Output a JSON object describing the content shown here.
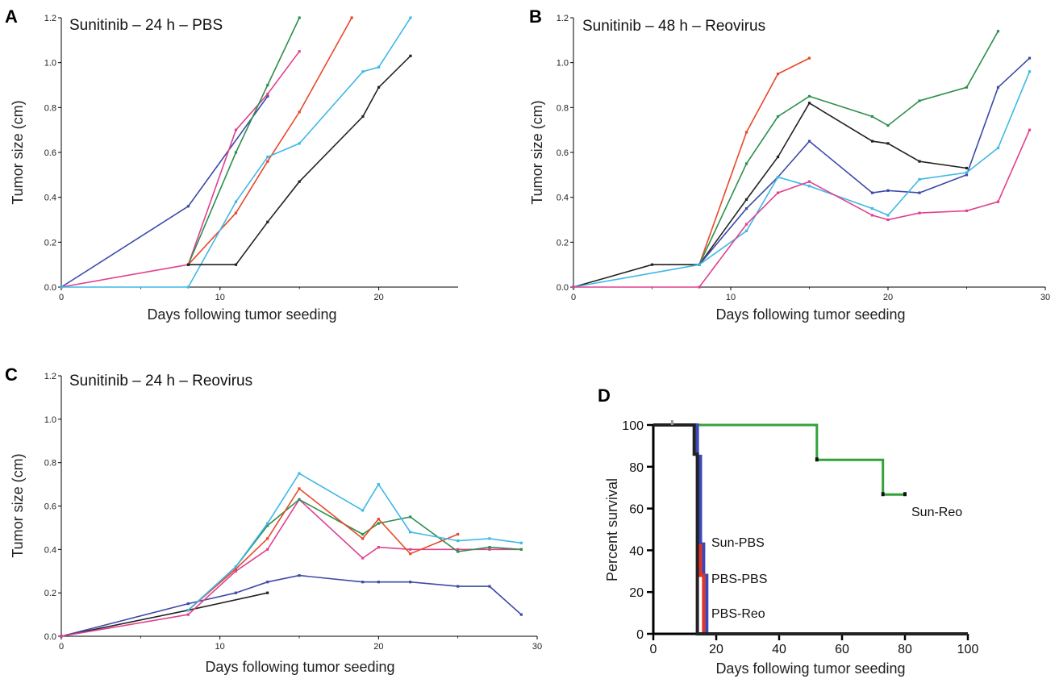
{
  "colors": {
    "navy": "#3d4aa6",
    "magenta": "#e0418f",
    "green": "#2f8f4f",
    "red": "#e8482a",
    "cyan": "#3fb8e6",
    "black": "#222222",
    "surv_green": "#33a23a",
    "surv_blue": "#3a48b8",
    "surv_red": "#e3342a"
  },
  "chart_data": [
    {
      "panel": "A",
      "type": "line",
      "title": "Sunitinib – 24 h – PBS",
      "xlabel": "Days following tumor seeding",
      "ylabel": "Tumor size (cm)",
      "xlim": [
        0,
        25
      ],
      "ylim": [
        0,
        1.2
      ],
      "xticks": [
        0,
        10,
        20
      ],
      "yticks": [
        0,
        0.2,
        0.4,
        0.6,
        0.8,
        1.0,
        1.2
      ],
      "ytick_labels": [
        "0.0",
        "0.2",
        "0.4",
        "0.6",
        "0.8",
        "1.0",
        "1.2"
      ],
      "series": [
        {
          "color": "navy",
          "points": [
            [
              0,
              0
            ],
            [
              8,
              0.36
            ],
            [
              13,
              0.85
            ]
          ]
        },
        {
          "color": "magenta",
          "points": [
            [
              0,
              0
            ],
            [
              8,
              0.1
            ],
            [
              11,
              0.7
            ],
            [
              13,
              0.86
            ],
            [
              15,
              1.05
            ]
          ]
        },
        {
          "color": "green",
          "points": [
            [
              8,
              0.1
            ],
            [
              11,
              0.6
            ],
            [
              13,
              0.9
            ],
            [
              15,
              1.2
            ]
          ]
        },
        {
          "color": "red",
          "points": [
            [
              8,
              0.1
            ],
            [
              11,
              0.33
            ],
            [
              13,
              0.56
            ],
            [
              15,
              0.78
            ],
            [
              18.3,
              1.2
            ]
          ]
        },
        {
          "color": "cyan",
          "points": [
            [
              0,
              0
            ],
            [
              8,
              0
            ],
            [
              11,
              0.38
            ],
            [
              13,
              0.58
            ],
            [
              15,
              0.64
            ],
            [
              19,
              0.96
            ],
            [
              20,
              0.98
            ],
            [
              22,
              1.2
            ]
          ]
        },
        {
          "color": "black",
          "points": [
            [
              8,
              0.1
            ],
            [
              11,
              0.1
            ],
            [
              13,
              0.29
            ],
            [
              15,
              0.47
            ],
            [
              19,
              0.76
            ],
            [
              20,
              0.89
            ],
            [
              22,
              1.03
            ]
          ]
        }
      ]
    },
    {
      "panel": "B",
      "type": "line",
      "title": "Sunitinib – 48 h – Reovirus",
      "xlabel": "Days following tumor seeding",
      "ylabel": "Tumor size (cm)",
      "xlim": [
        0,
        30
      ],
      "ylim": [
        0,
        1.2
      ],
      "xticks": [
        0,
        10,
        20,
        30
      ],
      "yticks": [
        0,
        0.2,
        0.4,
        0.6,
        0.8,
        1.0,
        1.2
      ],
      "ytick_labels": [
        "0.0",
        "0.2",
        "0.4",
        "0.6",
        "0.8",
        "1.0",
        "1.2"
      ],
      "series": [
        {
          "color": "black",
          "points": [
            [
              0,
              0
            ],
            [
              5,
              0.1
            ],
            [
              8,
              0.1
            ],
            [
              11,
              0.39
            ],
            [
              13,
              0.58
            ],
            [
              15,
              0.82
            ],
            [
              19,
              0.65
            ],
            [
              20,
              0.64
            ],
            [
              22,
              0.56
            ],
            [
              25,
              0.53
            ]
          ]
        },
        {
          "color": "red",
          "points": [
            [
              8,
              0.1
            ],
            [
              11,
              0.69
            ],
            [
              13,
              0.95
            ],
            [
              15,
              1.02
            ]
          ]
        },
        {
          "color": "green",
          "points": [
            [
              8,
              0.1
            ],
            [
              11,
              0.55
            ],
            [
              13,
              0.76
            ],
            [
              15,
              0.85
            ],
            [
              19,
              0.76
            ],
            [
              20,
              0.72
            ],
            [
              22,
              0.83
            ],
            [
              25,
              0.89
            ],
            [
              27,
              1.14
            ]
          ]
        },
        {
          "color": "navy",
          "points": [
            [
              8,
              0.1
            ],
            [
              11,
              0.35
            ],
            [
              13,
              0.49
            ],
            [
              15,
              0.65
            ],
            [
              19,
              0.42
            ],
            [
              20,
              0.43
            ],
            [
              22,
              0.42
            ],
            [
              25,
              0.5
            ],
            [
              27,
              0.89
            ],
            [
              29,
              1.02
            ]
          ]
        },
        {
          "color": "cyan",
          "points": [
            [
              0,
              0
            ],
            [
              8,
              0.1
            ],
            [
              11,
              0.25
            ],
            [
              13,
              0.49
            ],
            [
              15,
              0.45
            ],
            [
              19,
              0.35
            ],
            [
              20,
              0.32
            ],
            [
              22,
              0.48
            ],
            [
              25,
              0.51
            ],
            [
              27,
              0.62
            ],
            [
              29,
              0.96
            ]
          ]
        },
        {
          "color": "magenta",
          "points": [
            [
              0,
              0
            ],
            [
              8,
              0
            ],
            [
              11,
              0.28
            ],
            [
              13,
              0.42
            ],
            [
              15,
              0.47
            ],
            [
              19,
              0.32
            ],
            [
              20,
              0.3
            ],
            [
              22,
              0.33
            ],
            [
              25,
              0.34
            ],
            [
              27,
              0.38
            ],
            [
              29,
              0.7
            ]
          ]
        }
      ]
    },
    {
      "panel": "C",
      "type": "line",
      "title": "Sunitinib – 24 h – Reovirus",
      "xlabel": "Days following tumor seeding",
      "ylabel": "Tumor size (cm)",
      "xlim": [
        0,
        30
      ],
      "ylim": [
        0,
        1.2
      ],
      "xticks": [
        0,
        10,
        20,
        30
      ],
      "yticks": [
        0,
        0.2,
        0.4,
        0.6,
        0.8,
        1.0,
        1.2
      ],
      "ytick_labels": [
        "0.0",
        "0.2",
        "0.4",
        "0.6",
        "0.8",
        "1.0",
        "1.2"
      ],
      "series": [
        {
          "color": "black",
          "points": [
            [
              0,
              0
            ],
            [
              8,
              0.12
            ],
            [
              13,
              0.2
            ]
          ]
        },
        {
          "color": "navy",
          "points": [
            [
              0,
              0
            ],
            [
              8,
              0.15
            ],
            [
              11,
              0.2
            ],
            [
              13,
              0.25
            ],
            [
              15,
              0.28
            ],
            [
              19,
              0.25
            ],
            [
              20,
              0.25
            ],
            [
              22,
              0.25
            ],
            [
              25,
              0.23
            ],
            [
              27,
              0.23
            ],
            [
              29,
              0.1
            ]
          ]
        },
        {
          "color": "magenta",
          "points": [
            [
              0,
              0
            ],
            [
              8,
              0.1
            ],
            [
              11,
              0.3
            ],
            [
              13,
              0.4
            ],
            [
              15,
              0.63
            ],
            [
              19,
              0.36
            ],
            [
              20,
              0.41
            ],
            [
              22,
              0.4
            ],
            [
              25,
              0.4
            ],
            [
              27,
              0.4
            ],
            [
              29,
              0.4
            ]
          ]
        },
        {
          "color": "green",
          "points": [
            [
              8,
              0.12
            ],
            [
              11,
              0.32
            ],
            [
              13,
              0.51
            ],
            [
              15,
              0.63
            ],
            [
              19,
              0.47
            ],
            [
              20,
              0.52
            ],
            [
              22,
              0.55
            ],
            [
              25,
              0.39
            ],
            [
              27,
              0.41
            ],
            [
              29,
              0.4
            ]
          ]
        },
        {
          "color": "red",
          "points": [
            [
              8,
              0.12
            ],
            [
              11,
              0.31
            ],
            [
              13,
              0.45
            ],
            [
              15,
              0.68
            ],
            [
              19,
              0.45
            ],
            [
              20,
              0.54
            ],
            [
              22,
              0.38
            ],
            [
              25,
              0.47
            ]
          ]
        },
        {
          "color": "cyan",
          "points": [
            [
              8,
              0.12
            ],
            [
              11,
              0.32
            ],
            [
              13,
              0.52
            ],
            [
              15,
              0.75
            ],
            [
              19,
              0.58
            ],
            [
              20,
              0.7
            ],
            [
              22,
              0.48
            ],
            [
              25,
              0.44
            ],
            [
              27,
              0.45
            ],
            [
              29,
              0.43
            ]
          ]
        }
      ]
    },
    {
      "panel": "D",
      "type": "line",
      "subtype": "step",
      "title": "",
      "xlabel": "Days following tumor seeding",
      "ylabel": "Percent survival",
      "xlim": [
        0,
        100
      ],
      "ylim": [
        0,
        100
      ],
      "xticks": [
        0,
        20,
        40,
        60,
        80,
        100
      ],
      "yticks": [
        0,
        20,
        40,
        60,
        80,
        100
      ],
      "ytick_labels": [
        "0",
        "20",
        "40",
        "60",
        "80",
        "100"
      ],
      "series": [
        {
          "name": "Sun-Reo",
          "color": "surv_green",
          "points": [
            [
              0,
              100
            ],
            [
              52,
              100
            ],
            [
              52,
              83.3
            ],
            [
              73,
              83.3
            ],
            [
              73,
              66.7
            ],
            [
              80,
              66.7
            ]
          ]
        },
        {
          "name": "Sun-PBS",
          "color": "surv_blue",
          "points": [
            [
              0,
              100
            ],
            [
              14,
              100
            ],
            [
              14,
              85
            ],
            [
              15,
              85
            ],
            [
              15,
              43
            ],
            [
              16,
              43
            ],
            [
              16,
              28
            ],
            [
              17,
              28
            ],
            [
              17,
              0
            ],
            [
              100,
              0
            ]
          ]
        },
        {
          "name": "PBS-PBS",
          "color": "surv_red",
          "points": [
            [
              15,
              43
            ],
            [
              15,
              28
            ],
            [
              16,
              28
            ],
            [
              16,
              0
            ],
            [
              17,
              0
            ]
          ]
        },
        {
          "name": "PBS-Reo",
          "color": "black",
          "points": [
            [
              0,
              100
            ],
            [
              13,
              100
            ],
            [
              13,
              86
            ],
            [
              14,
              86
            ],
            [
              14,
              0
            ],
            [
              100,
              0
            ]
          ]
        }
      ],
      "annotations": [
        {
          "text": "Sun-Reo",
          "x": 82,
          "y": 60
        },
        {
          "text": "Sun-PBS",
          "x": 18,
          "y": 42
        },
        {
          "text": "PBS-PBS",
          "x": 18,
          "y": 26
        },
        {
          "text": "PBS-Reo",
          "x": 18,
          "y": 11
        }
      ]
    }
  ]
}
